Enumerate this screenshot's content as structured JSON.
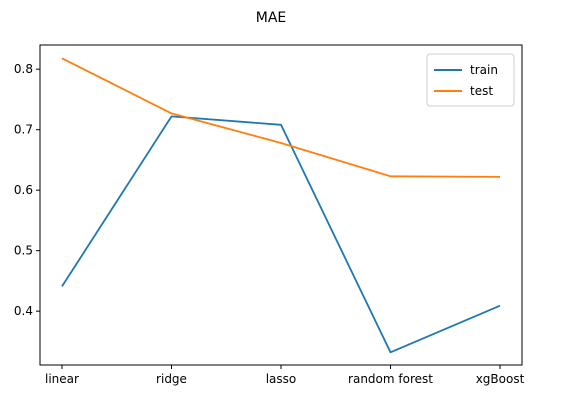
{
  "chart_data": {
    "type": "line",
    "title": "MAE",
    "xlabel": "",
    "ylabel": "",
    "categories": [
      "linear",
      "ridge",
      "lasso",
      "random forest",
      "xgBoost"
    ],
    "series": [
      {
        "name": "train",
        "color": "#1f77b4",
        "values": [
          0.441,
          0.722,
          0.708,
          0.332,
          0.409
        ]
      },
      {
        "name": "test",
        "color": "#ff7f0e",
        "values": [
          0.818,
          0.727,
          0.678,
          0.623,
          0.622
        ]
      }
    ],
    "ylim": [
      0.311,
      0.84
    ],
    "yticks": [
      "0.4",
      "0.5",
      "0.6",
      "0.7",
      "0.8"
    ],
    "grid": false,
    "legend": "top-right"
  }
}
